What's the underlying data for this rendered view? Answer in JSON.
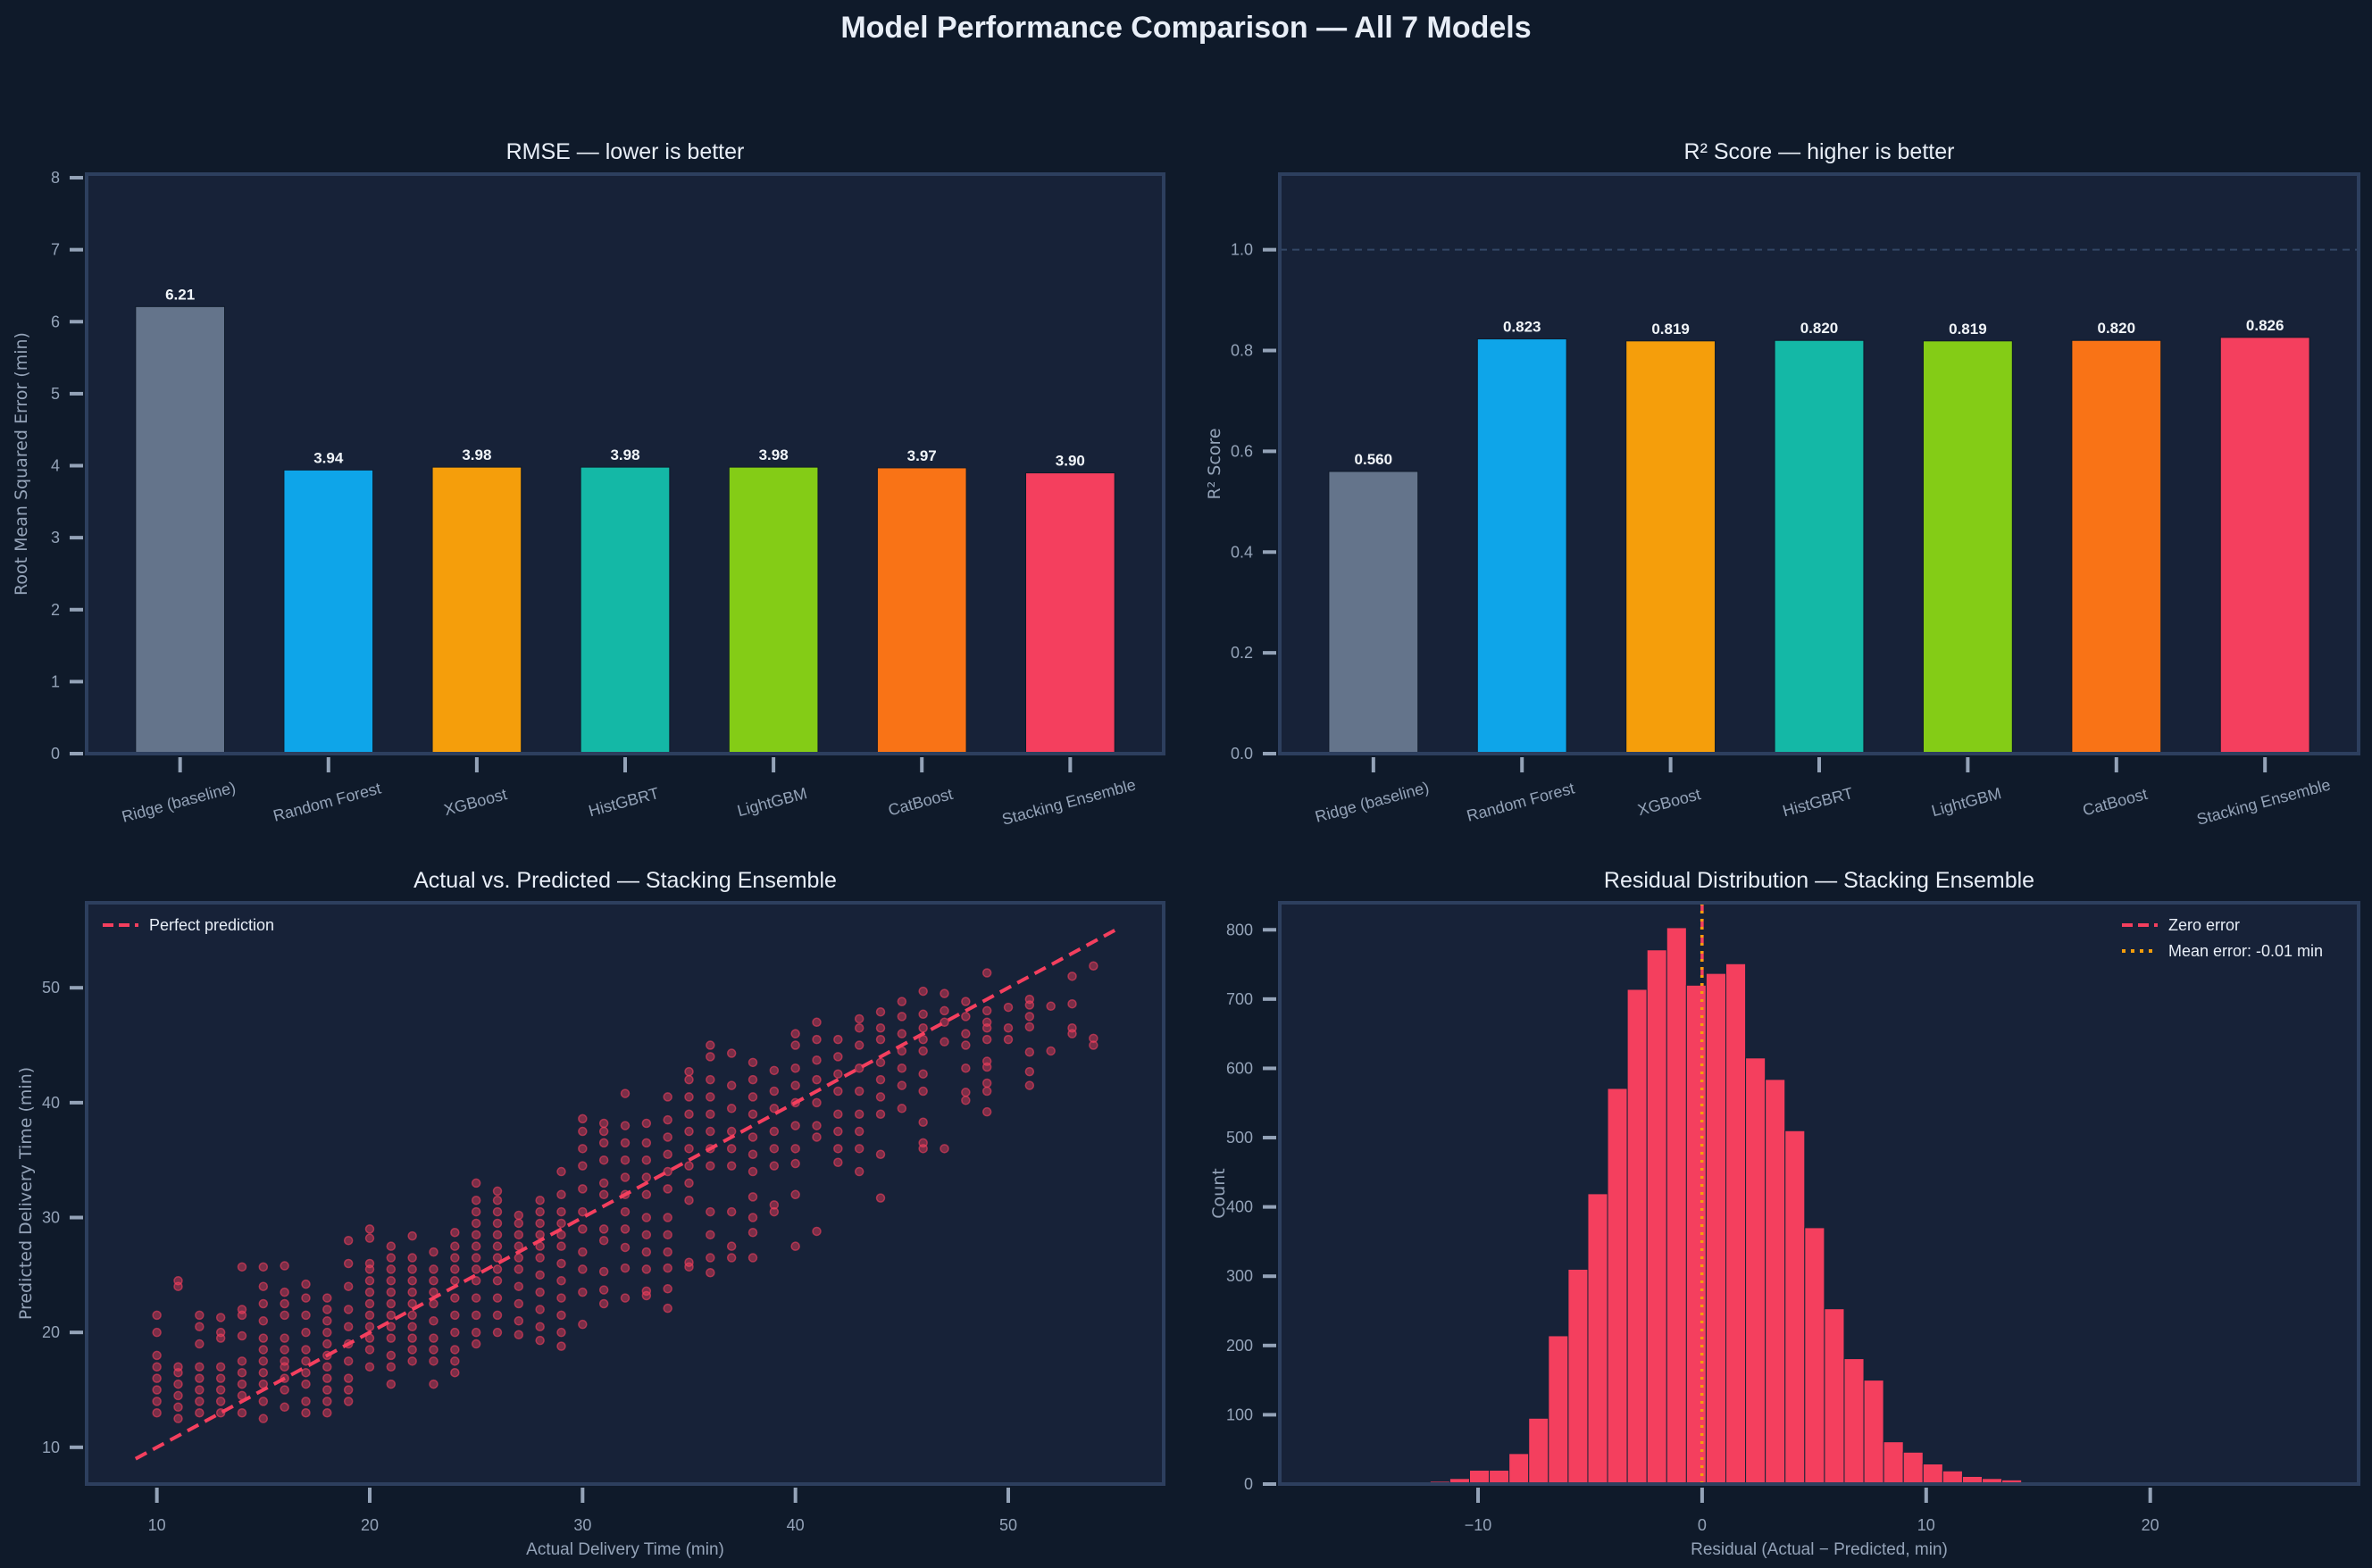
{
  "figure": {
    "title": "Model Performance Comparison — All 7 Models"
  },
  "colors": {
    "figure_bg": "#0f1a2a",
    "axes_bg": "#172238",
    "spine": "#2d3f5e",
    "tick": "#94a3b8",
    "accent": "#f43f5e",
    "mean_line": "#f59e0b"
  },
  "chart_data": [
    {
      "type": "bar",
      "title": "RMSE — lower is better",
      "xlabel": "",
      "ylabel": "Root Mean Squared Error (min)",
      "categories": [
        "Ridge (baseline)",
        "Random Forest",
        "XGBoost",
        "HistGBRT",
        "LightGBM",
        "CatBoost",
        "Stacking Ensemble"
      ],
      "values": [
        6.21,
        3.94,
        3.98,
        3.98,
        3.98,
        3.97,
        3.9
      ],
      "value_labels": [
        "6.21",
        "3.94",
        "3.98",
        "3.98",
        "3.98",
        "3.97",
        "3.90"
      ],
      "bar_colors": [
        "#64748b",
        "#0ea5e9",
        "#f59e0b",
        "#14b8a6",
        "#84cc16",
        "#f97316",
        "#f43f5e"
      ],
      "ylim": [
        0,
        8.05
      ],
      "yticks": [
        0,
        1,
        2,
        3,
        4,
        5,
        6,
        7,
        8
      ],
      "ytick_labels": [
        "0",
        "1",
        "2",
        "3",
        "4",
        "5",
        "6",
        "7",
        "8"
      ],
      "grid": false
    },
    {
      "type": "bar",
      "title": "R² Score — higher is better",
      "xlabel": "",
      "ylabel": "R² Score",
      "categories": [
        "Ridge (baseline)",
        "Random Forest",
        "XGBoost",
        "HistGBRT",
        "LightGBM",
        "CatBoost",
        "Stacking Ensemble"
      ],
      "values": [
        0.56,
        0.823,
        0.819,
        0.82,
        0.819,
        0.82,
        0.826
      ],
      "value_labels": [
        "0.560",
        "0.823",
        "0.819",
        "0.820",
        "0.819",
        "0.820",
        "0.826"
      ],
      "bar_colors": [
        "#64748b",
        "#0ea5e9",
        "#f59e0b",
        "#14b8a6",
        "#84cc16",
        "#f97316",
        "#f43f5e"
      ],
      "ylim": [
        0,
        1.15
      ],
      "yticks": [
        0,
        0.2,
        0.4,
        0.6,
        0.8,
        1.0
      ],
      "ytick_labels": [
        "0.0",
        "0.2",
        "0.4",
        "0.6",
        "0.8",
        "1.0"
      ],
      "reference_line": 1.0,
      "grid": false
    },
    {
      "type": "scatter",
      "title": "Actual vs. Predicted — Stacking Ensemble",
      "xlabel": "Actual Delivery Time (min)",
      "ylabel": "Predicted Delivery Time (min)",
      "xlim": [
        6.7,
        57.3
      ],
      "ylim": [
        6.8,
        57.4
      ],
      "xticks": [
        10,
        20,
        30,
        40,
        50
      ],
      "xtick_labels": [
        "10",
        "20",
        "30",
        "40",
        "50"
      ],
      "yticks": [
        10,
        20,
        30,
        40,
        50
      ],
      "ytick_labels": [
        "10",
        "20",
        "30",
        "40",
        "50"
      ],
      "legend": {
        "position": "top-left",
        "entries": [
          "Perfect prediction"
        ]
      },
      "reference_line": {
        "from": 9,
        "to": 55,
        "style": "dashed"
      },
      "points_by_actual": {
        "10": [
          13,
          14,
          15,
          16,
          17,
          18,
          20,
          21.5
        ],
        "11": [
          12.5,
          13.5,
          14.5,
          15.5,
          16.5,
          17,
          24,
          24.5
        ],
        "12": [
          13,
          14,
          15,
          16,
          17,
          19,
          20.5,
          21.5
        ],
        "13": [
          13,
          14,
          15,
          16,
          17,
          19.5,
          20,
          21.3
        ],
        "14": [
          13,
          14.5,
          15.5,
          16.5,
          17.5,
          19.7,
          21.5,
          22,
          25.7
        ],
        "15": [
          12.5,
          14,
          15.5,
          16.5,
          17.5,
          18.5,
          19.5,
          21,
          22.5,
          24,
          25.7
        ],
        "16": [
          13.5,
          15,
          16,
          17,
          17.5,
          18.5,
          19.5,
          21.5,
          22.5,
          23.5,
          25.8
        ],
        "17": [
          13,
          14,
          15.5,
          16.5,
          17.5,
          18.5,
          20,
          21.5,
          23,
          24.2
        ],
        "18": [
          13,
          14,
          15,
          16,
          17,
          18,
          19,
          20,
          21,
          22,
          23
        ],
        "19": [
          14,
          15,
          16,
          17.5,
          19,
          20.5,
          22,
          24,
          26,
          28
        ],
        "20": [
          17,
          18.5,
          19.5,
          20.5,
          21.5,
          22.5,
          23.5,
          24.5,
          25.5,
          26,
          28.2,
          29
        ],
        "21": [
          15.5,
          17,
          18,
          19.5,
          20.5,
          21.5,
          22.5,
          23.5,
          24.5,
          25.5,
          26.5,
          27.5
        ],
        "22": [
          17.5,
          18.5,
          19.5,
          20.5,
          21.5,
          22.5,
          23.5,
          24.5,
          25.5,
          26.5,
          28.4
        ],
        "23": [
          15.5,
          17.5,
          18.5,
          19.5,
          21,
          22.5,
          23.5,
          24.5,
          25.5,
          27
        ],
        "24": [
          16.5,
          17.5,
          18.5,
          20,
          21.5,
          23,
          24.5,
          25.5,
          26.5,
          27.5,
          28.7
        ],
        "25": [
          19,
          20,
          21.5,
          23,
          24.5,
          25.5,
          26.5,
          27.5,
          28.5,
          29.5,
          30.5,
          31.5,
          33
        ],
        "26": [
          20,
          21.5,
          23,
          24.5,
          25.5,
          26.5,
          27.5,
          28.5,
          29.5,
          30.5,
          31.5,
          32.3
        ],
        "27": [
          19.8,
          21,
          22.5,
          24,
          25.5,
          26.5,
          27.5,
          28.5,
          29.5,
          30.2
        ],
        "28": [
          19.3,
          20.5,
          22,
          23.5,
          25,
          26.5,
          27.5,
          28.5,
          29.5,
          30.5,
          31.5
        ],
        "29": [
          18.8,
          20,
          21.5,
          23,
          24.5,
          26,
          27.5,
          28.5,
          29.5,
          30.5,
          32,
          34
        ],
        "30": [
          20.7,
          23.5,
          25.5,
          27,
          29,
          30.5,
          32.5,
          34.5,
          36,
          37.5,
          38.6
        ],
        "31": [
          22.5,
          23.7,
          25.3,
          28,
          29,
          32,
          33,
          35,
          36.5,
          37.5,
          38.2
        ],
        "32": [
          23,
          25.6,
          27.4,
          29,
          30.5,
          32,
          33.5,
          35,
          36.5,
          38,
          40.8
        ],
        "33": [
          23.2,
          23.6,
          25.5,
          27,
          28.5,
          30,
          32,
          33.5,
          35,
          36.5,
          38.2
        ],
        "34": [
          22.1,
          23.8,
          25.6,
          27,
          28.5,
          30,
          32.5,
          34,
          35.5,
          37,
          38.5,
          40.5
        ],
        "35": [
          25.7,
          26.1,
          31.5,
          33,
          34.5,
          36,
          37.5,
          39,
          40.5,
          42,
          42.7
        ],
        "36": [
          25.2,
          26.5,
          28.5,
          30.5,
          34.5,
          36,
          37.5,
          39,
          40.5,
          42,
          44,
          45
        ],
        "37": [
          26.5,
          27.5,
          30.5,
          34.5,
          36,
          37.5,
          39.5,
          41.5,
          44.3
        ],
        "38": [
          26.5,
          28.7,
          30,
          31.8,
          34,
          35.5,
          37,
          39,
          40.5,
          42,
          43.5
        ],
        "39": [
          30.5,
          31.1,
          34.5,
          36,
          37.5,
          39.5,
          41,
          42.8
        ],
        "40": [
          27.5,
          32,
          34.7,
          36,
          38,
          40,
          41.5,
          43,
          45,
          46
        ],
        "41": [
          28.8,
          37,
          38,
          40,
          42,
          43.7,
          45.5,
          47
        ],
        "42": [
          34.8,
          36,
          37.5,
          39,
          41,
          42.5,
          44,
          45.5
        ],
        "43": [
          34,
          36,
          37.5,
          39,
          41,
          43,
          45,
          46.5,
          47.3
        ],
        "44": [
          31.7,
          35.5,
          39,
          40.5,
          42,
          43.5,
          45.5,
          46.5,
          47.9
        ],
        "45": [
          39.5,
          41.5,
          43,
          44.5,
          46,
          47.5,
          48.8
        ],
        "46": [
          36,
          36.5,
          38.3,
          41,
          42.5,
          44.5,
          45.5,
          46.5,
          47.7,
          49.7
        ],
        "47": [
          36,
          45.3,
          47,
          48,
          49.5
        ],
        "48": [
          40.2,
          40.9,
          43,
          45,
          46,
          47.5,
          48.8
        ],
        "49": [
          39.2,
          41,
          41.7,
          43.1,
          43.6,
          45.5,
          46.5,
          47,
          48,
          51.3
        ],
        "50": [
          45.5,
          46.5,
          48.3
        ],
        "51": [
          41.5,
          42.7,
          44.4,
          46.6,
          47.5,
          48.5,
          49
        ],
        "52": [
          44.5,
          48.4
        ],
        "53": [
          46,
          46.5,
          48.6,
          51
        ],
        "54": [
          45,
          45.6,
          51.9
        ]
      }
    },
    {
      "type": "histogram",
      "title": "Residual Distribution — Stacking Ensemble",
      "xlabel": "Residual (Actual − Predicted, min)",
      "ylabel": "Count",
      "xlim": [
        -18.85,
        29.3
      ],
      "ylim": [
        0,
        839
      ],
      "xticks": [
        -10,
        0,
        10,
        20
      ],
      "xtick_labels": [
        "−10",
        "0",
        "10",
        "20"
      ],
      "yticks": [
        0,
        100,
        200,
        300,
        400,
        500,
        600,
        700,
        800
      ],
      "ytick_labels": [
        "0",
        "100",
        "200",
        "300",
        "400",
        "500",
        "600",
        "700",
        "800"
      ],
      "bin_start": -13.9,
      "bin_width": 0.88,
      "counts": [
        1,
        1,
        4,
        8,
        20,
        20,
        44,
        95,
        214,
        310,
        419,
        571,
        714,
        771,
        803,
        720,
        737,
        751,
        615,
        584,
        510,
        370,
        253,
        181,
        150,
        61,
        46,
        29,
        19,
        11,
        8,
        6,
        1,
        1
      ],
      "zero_line": 0,
      "mean_error": -0.01,
      "legend": {
        "position": "top-right",
        "entries": [
          "Zero error",
          "Mean error: -0.01 min"
        ]
      }
    }
  ]
}
